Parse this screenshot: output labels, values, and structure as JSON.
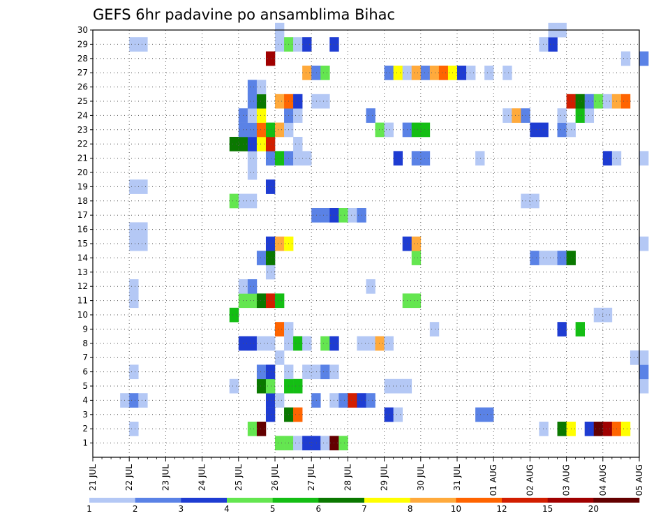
{
  "chart_data": {
    "type": "heatmap",
    "title": "GEFS 6hr padavine po ansamblima Bihac",
    "xlabel": "",
    "ylabel": "",
    "x_ticks": [
      "21 JUL",
      "22 JUL",
      "23 JUL",
      "24 JUL",
      "25 JUL",
      "26 JUL",
      "27 JUL",
      "28 JUL",
      "29 JUL",
      "30 JUL",
      "31 JUL",
      "01 AUG",
      "02 AUG",
      "03 AUG",
      "04 AUG",
      "05 AUG"
    ],
    "y_ticks": [
      "1",
      "2",
      "3",
      "4",
      "5",
      "6",
      "7",
      "8",
      "9",
      "10",
      "11",
      "12",
      "13",
      "14",
      "15",
      "16",
      "17",
      "18",
      "19",
      "20",
      "21",
      "22",
      "23",
      "24",
      "25",
      "26",
      "27",
      "28",
      "29",
      "30"
    ],
    "xlim": [
      0,
      15
    ],
    "ylim": [
      0,
      30
    ],
    "x_step_days": 0.25,
    "grid": true,
    "colorbar": {
      "labels": [
        "1",
        "2",
        "3",
        "4",
        "5",
        "6",
        "7",
        "8",
        "10",
        "12",
        "15",
        "20"
      ],
      "colors": [
        "#b4c8f5",
        "#5a82e6",
        "#1e3cd2",
        "#64e650",
        "#14be14",
        "#0a7800",
        "#ffff00",
        "#ffaa3c",
        "#ff6400",
        "#d21e00",
        "#a00000",
        "#640000"
      ]
    },
    "cells": [
      [
        1,
        5,
        5,
        4
      ],
      [
        1,
        5.25,
        4,
        4
      ],
      [
        1,
        5.5,
        1,
        1
      ],
      [
        1,
        5.75,
        8,
        3
      ],
      [
        1,
        6,
        12,
        3
      ],
      [
        1,
        6.25,
        1,
        1
      ],
      [
        1,
        6.5,
        20,
        12
      ],
      [
        1,
        6.75,
        4,
        4
      ],
      [
        2,
        1,
        1,
        1
      ],
      [
        2,
        4.25,
        4,
        4
      ],
      [
        2,
        4.5,
        20,
        12
      ],
      [
        2,
        12.25,
        1,
        1
      ],
      [
        2,
        12.75,
        7,
        6
      ],
      [
        2,
        13,
        8,
        7
      ],
      [
        2,
        13.5,
        3,
        3
      ],
      [
        2,
        13.75,
        20,
        12
      ],
      [
        2,
        14,
        20,
        11
      ],
      [
        2,
        14.25,
        12,
        9
      ],
      [
        2,
        14.5,
        8,
        7
      ],
      [
        3,
        4.75,
        3,
        3
      ],
      [
        3,
        5.25,
        7,
        6
      ],
      [
        3,
        5.5,
        12,
        9
      ],
      [
        3,
        8,
        3,
        3
      ],
      [
        3,
        8.25,
        1,
        1
      ],
      [
        3,
        10.5,
        2,
        2
      ],
      [
        3,
        10.75,
        2,
        2
      ],
      [
        4,
        0.75,
        1,
        1
      ],
      [
        4,
        1,
        2,
        2
      ],
      [
        4,
        1.25,
        1,
        1
      ],
      [
        4,
        4.75,
        3,
        3
      ],
      [
        4,
        5,
        1,
        1
      ],
      [
        4,
        6,
        2,
        2
      ],
      [
        4,
        6.5,
        1,
        1
      ],
      [
        4,
        6.75,
        2,
        2
      ],
      [
        4,
        7,
        15,
        10
      ],
      [
        4,
        7.25,
        3,
        3
      ],
      [
        4,
        7.5,
        2,
        2
      ],
      [
        5,
        3.75,
        1,
        1
      ],
      [
        5,
        4.5,
        7,
        6
      ],
      [
        5,
        4.75,
        5,
        4
      ],
      [
        5,
        5.25,
        6,
        5
      ],
      [
        5,
        5.5,
        6,
        5
      ],
      [
        5,
        8,
        1,
        1
      ],
      [
        5,
        8.25,
        1,
        1
      ],
      [
        5,
        8.5,
        1,
        1
      ],
      [
        5,
        15,
        1,
        1
      ],
      [
        6,
        1,
        1,
        1
      ],
      [
        6,
        4.5,
        2,
        2
      ],
      [
        6,
        4.75,
        3,
        3
      ],
      [
        6,
        5.25,
        1,
        1
      ],
      [
        6,
        5.75,
        1,
        1
      ],
      [
        6,
        6,
        1,
        1
      ],
      [
        6,
        6.25,
        2,
        2
      ],
      [
        6,
        6.5,
        1,
        1
      ],
      [
        6,
        15,
        2,
        2
      ],
      [
        7,
        5,
        1,
        1
      ],
      [
        7,
        14.75,
        1,
        1
      ],
      [
        7,
        15,
        1,
        1
      ],
      [
        8,
        4,
        3,
        3
      ],
      [
        8,
        4.25,
        3,
        3
      ],
      [
        8,
        4.5,
        1,
        1
      ],
      [
        8,
        4.75,
        1,
        1
      ],
      [
        8,
        5.25,
        1,
        1
      ],
      [
        8,
        5.5,
        6,
        5
      ],
      [
        8,
        5.75,
        1,
        1
      ],
      [
        8,
        6.25,
        5,
        4
      ],
      [
        8,
        6.5,
        3,
        3
      ],
      [
        8,
        7.25,
        1,
        1
      ],
      [
        8,
        7.5,
        1,
        1
      ],
      [
        8,
        7.75,
        10,
        8
      ],
      [
        8,
        8,
        1,
        1
      ],
      [
        9,
        5,
        12,
        9
      ],
      [
        9,
        5.25,
        1,
        1
      ],
      [
        9,
        9.25,
        1,
        1
      ],
      [
        9,
        12.75,
        3,
        3
      ],
      [
        9,
        13.25,
        6,
        5
      ],
      [
        10,
        3.75,
        6,
        5
      ],
      [
        10,
        13.75,
        1,
        1
      ],
      [
        10,
        14,
        1,
        1
      ],
      [
        11,
        1,
        1,
        1
      ],
      [
        11,
        4,
        5,
        4
      ],
      [
        11,
        4.25,
        5,
        4
      ],
      [
        11,
        4.5,
        7,
        6
      ],
      [
        11,
        4.75,
        15,
        10
      ],
      [
        11,
        5,
        6,
        5
      ],
      [
        11,
        8.5,
        5,
        4
      ],
      [
        11,
        8.75,
        5,
        4
      ],
      [
        12,
        1,
        1,
        1
      ],
      [
        12,
        4,
        1,
        1
      ],
      [
        12,
        4.25,
        2,
        2
      ],
      [
        12,
        7.5,
        1,
        1
      ],
      [
        13,
        4.75,
        1,
        1
      ],
      [
        14,
        4.5,
        2,
        2
      ],
      [
        14,
        4.75,
        7,
        6
      ],
      [
        14,
        8.75,
        5,
        4
      ],
      [
        14,
        12,
        2,
        2
      ],
      [
        14,
        12.25,
        1,
        1
      ],
      [
        14,
        12.5,
        1,
        1
      ],
      [
        14,
        12.75,
        2,
        2
      ],
      [
        14,
        13,
        7,
        6
      ],
      [
        15,
        1,
        1,
        1
      ],
      [
        15,
        1.25,
        1,
        1
      ],
      [
        15,
        4.75,
        3,
        3
      ],
      [
        15,
        5,
        10,
        8
      ],
      [
        15,
        5.25,
        8,
        7
      ],
      [
        15,
        8.5,
        3,
        3
      ],
      [
        15,
        8.75,
        10,
        8
      ],
      [
        15,
        15,
        1,
        1
      ],
      [
        16,
        1,
        1,
        1
      ],
      [
        16,
        1.25,
        1,
        1
      ],
      [
        17,
        6,
        2,
        2
      ],
      [
        17,
        6.25,
        2,
        2
      ],
      [
        17,
        6.5,
        3,
        3
      ],
      [
        17,
        6.75,
        5,
        4
      ],
      [
        17,
        7,
        1,
        1
      ],
      [
        17,
        7.25,
        2,
        2
      ],
      [
        18,
        3.75,
        5,
        4
      ],
      [
        18,
        4,
        1,
        1
      ],
      [
        18,
        4.25,
        1,
        1
      ],
      [
        18,
        11.75,
        1,
        1
      ],
      [
        18,
        12,
        1,
        1
      ],
      [
        19,
        1,
        1,
        1
      ],
      [
        19,
        1.25,
        1,
        1
      ],
      [
        19,
        4.75,
        3,
        3
      ],
      [
        20,
        4.25,
        1,
        1
      ],
      [
        21,
        4.25,
        1,
        1
      ],
      [
        21,
        4.75,
        2,
        2
      ],
      [
        21,
        5,
        6,
        5
      ],
      [
        21,
        5.25,
        2,
        2
      ],
      [
        21,
        5.5,
        1,
        1
      ],
      [
        21,
        5.75,
        1,
        1
      ],
      [
        21,
        8.25,
        3,
        3
      ],
      [
        21,
        8.75,
        2,
        2
      ],
      [
        21,
        9,
        2,
        2
      ],
      [
        21,
        10.5,
        1,
        1
      ],
      [
        21,
        14,
        3,
        3
      ],
      [
        21,
        14.25,
        1,
        1
      ],
      [
        21,
        15,
        1,
        1
      ],
      [
        22,
        3.75,
        7,
        6
      ],
      [
        22,
        4,
        7,
        6
      ],
      [
        22,
        4.25,
        3,
        3
      ],
      [
        22,
        4.5,
        8,
        7
      ],
      [
        22,
        4.75,
        15,
        10
      ],
      [
        22,
        5.5,
        1,
        1
      ],
      [
        23,
        4,
        2,
        2
      ],
      [
        23,
        4.25,
        2,
        2
      ],
      [
        23,
        4.5,
        12,
        9
      ],
      [
        23,
        4.75,
        6,
        5
      ],
      [
        23,
        5,
        10,
        8
      ],
      [
        23,
        5.25,
        1,
        1
      ],
      [
        23,
        7.75,
        5,
        4
      ],
      [
        23,
        8,
        1,
        1
      ],
      [
        23,
        8.5,
        2,
        2
      ],
      [
        23,
        8.75,
        6,
        5
      ],
      [
        23,
        9,
        6,
        5
      ],
      [
        23,
        12,
        3,
        3
      ],
      [
        23,
        12.25,
        3,
        3
      ],
      [
        23,
        12.75,
        2,
        2
      ],
      [
        23,
        13,
        1,
        1
      ],
      [
        24,
        4,
        2,
        2
      ],
      [
        24,
        4.25,
        1,
        1
      ],
      [
        24,
        4.5,
        8,
        7
      ],
      [
        24,
        5.25,
        2,
        2
      ],
      [
        24,
        5.5,
        1,
        1
      ],
      [
        24,
        7.5,
        2,
        2
      ],
      [
        24,
        11.25,
        1,
        1
      ],
      [
        24,
        11.5,
        10,
        8
      ],
      [
        24,
        11.75,
        2,
        2
      ],
      [
        24,
        12.75,
        1,
        1
      ],
      [
        24,
        13.25,
        6,
        5
      ],
      [
        24,
        13.5,
        1,
        1
      ],
      [
        25,
        4.25,
        2,
        2
      ],
      [
        25,
        4.5,
        7,
        6
      ],
      [
        25,
        5,
        10,
        8
      ],
      [
        25,
        5.25,
        12,
        9
      ],
      [
        25,
        5.5,
        3,
        3
      ],
      [
        25,
        6,
        1,
        1
      ],
      [
        25,
        6.25,
        1,
        1
      ],
      [
        25,
        13,
        15,
        10
      ],
      [
        25,
        13.25,
        7,
        6
      ],
      [
        25,
        13.5,
        2,
        2
      ],
      [
        25,
        13.75,
        5,
        4
      ],
      [
        25,
        14,
        1,
        1
      ],
      [
        25,
        14.25,
        10,
        8
      ],
      [
        25,
        14.5,
        12,
        9
      ],
      [
        26,
        4.25,
        2,
        2
      ],
      [
        26,
        4.5,
        1,
        1
      ],
      [
        27,
        5.75,
        10,
        8
      ],
      [
        27,
        6,
        2,
        2
      ],
      [
        27,
        6.25,
        5,
        4
      ],
      [
        27,
        8,
        2,
        2
      ],
      [
        27,
        8.25,
        8,
        7
      ],
      [
        27,
        8.5,
        1,
        1
      ],
      [
        27,
        8.75,
        10,
        8
      ],
      [
        27,
        9,
        2,
        2
      ],
      [
        27,
        9.25,
        10,
        8
      ],
      [
        27,
        9.5,
        12,
        9
      ],
      [
        27,
        9.75,
        8,
        7
      ],
      [
        27,
        10,
        3,
        3
      ],
      [
        27,
        10.25,
        1,
        1
      ],
      [
        27,
        10.75,
        1,
        1
      ],
      [
        27,
        11.25,
        1,
        1
      ],
      [
        28,
        4.75,
        20,
        11
      ],
      [
        28,
        14.5,
        1,
        1
      ],
      [
        28,
        15,
        2,
        2
      ],
      [
        29,
        1,
        1,
        1
      ],
      [
        29,
        1.25,
        1,
        1
      ],
      [
        29,
        5,
        1,
        1
      ],
      [
        29,
        5.25,
        5,
        4
      ],
      [
        29,
        5.5,
        1,
        1
      ],
      [
        29,
        5.75,
        3,
        3
      ],
      [
        29,
        6.5,
        3,
        3
      ],
      [
        29,
        12.25,
        1,
        1
      ],
      [
        29,
        12.5,
        3,
        3
      ],
      [
        30,
        5,
        1,
        1
      ],
      [
        30,
        12.5,
        1,
        1
      ],
      [
        30,
        12.75,
        1,
        1
      ]
    ]
  }
}
